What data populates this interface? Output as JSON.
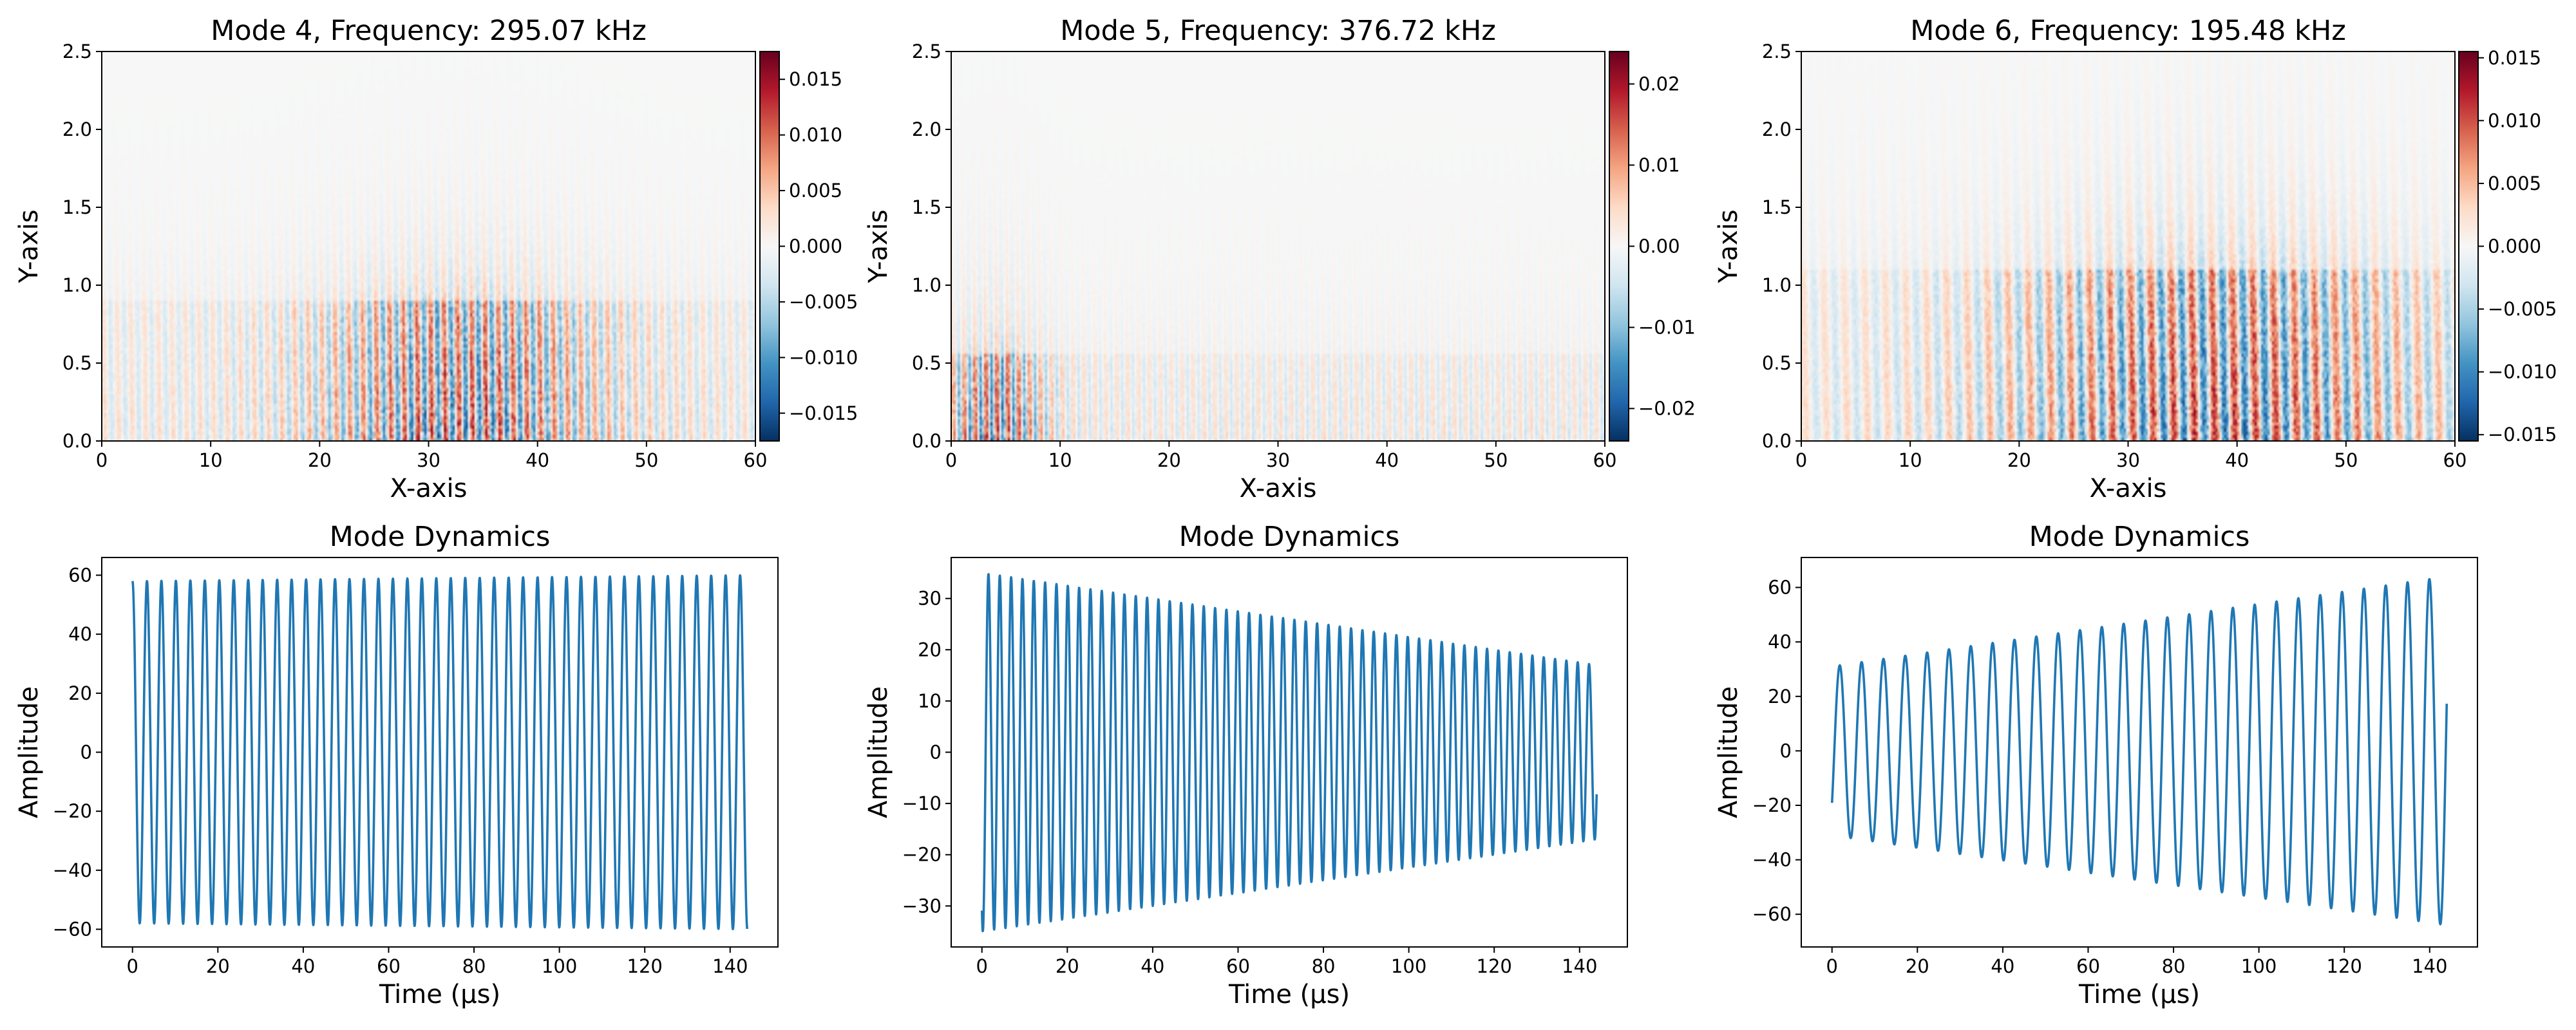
{
  "figure": {
    "background": "#ffffff"
  },
  "chart_data": [
    {
      "type": "heatmap",
      "title": "Mode 4, Frequency: 295.07 kHz",
      "xlabel": "X-axis",
      "ylabel": "Y-axis",
      "xlim": [
        0,
        60
      ],
      "ylim": [
        0,
        2.5
      ],
      "xticks": [
        0,
        10,
        20,
        30,
        40,
        50,
        60
      ],
      "xtick_labels": [
        "0",
        "10",
        "20",
        "30",
        "40",
        "50",
        "60"
      ],
      "yticks": [
        0.0,
        0.5,
        1.0,
        1.5,
        2.0,
        2.5
      ],
      "ytick_labels": [
        "0.0",
        "0.5",
        "1.0",
        "1.5",
        "2.0",
        "2.5"
      ],
      "colormap": "RdBu_r",
      "colorbar": {
        "vmin": -0.0175,
        "vmax": 0.0175,
        "ticks": [
          -0.015,
          -0.01,
          -0.005,
          0.0,
          0.005,
          0.01,
          0.015
        ],
        "tick_labels": [
          "−0.015",
          "−0.010",
          "−0.005",
          "0.000",
          "0.005",
          "0.010",
          "0.015"
        ]
      },
      "field": {
        "stripe_cycles": 48,
        "strong_x": [
          22,
          50
        ],
        "strong_center": 33,
        "band_top": 0.9,
        "fade_top": 1.7,
        "max_amp": 0.0175
      }
    },
    {
      "type": "heatmap",
      "title": "Mode 5, Frequency: 376.72 kHz",
      "xlabel": "X-axis",
      "ylabel": "Y-axis",
      "xlim": [
        0,
        60
      ],
      "ylim": [
        0,
        2.5
      ],
      "xticks": [
        0,
        10,
        20,
        30,
        40,
        50,
        60
      ],
      "xtick_labels": [
        "0",
        "10",
        "20",
        "30",
        "40",
        "50",
        "60"
      ],
      "yticks": [
        0.0,
        0.5,
        1.0,
        1.5,
        2.0,
        2.5
      ],
      "ytick_labels": [
        "0.0",
        "0.5",
        "1.0",
        "1.5",
        "2.0",
        "2.5"
      ],
      "colormap": "RdBu_r",
      "colorbar": {
        "vmin": -0.024,
        "vmax": 0.024,
        "ticks": [
          -0.02,
          -0.01,
          0.0,
          0.01,
          0.02
        ],
        "tick_labels": [
          "−0.02",
          "−0.01",
          "0.00",
          "0.01",
          "0.02"
        ]
      },
      "field": {
        "stripe_cycles": 60,
        "strong_x": [
          0,
          10
        ],
        "strong_center": 4,
        "band_top": 0.55,
        "fade_top": 1.5,
        "max_amp": 0.024
      }
    },
    {
      "type": "heatmap",
      "title": "Mode 6, Frequency: 195.48 kHz",
      "xlabel": "X-axis",
      "ylabel": "Y-axis",
      "xlim": [
        0,
        60
      ],
      "ylim": [
        0,
        2.5
      ],
      "xticks": [
        0,
        10,
        20,
        30,
        40,
        50,
        60
      ],
      "xtick_labels": [
        "0",
        "10",
        "20",
        "30",
        "40",
        "50",
        "60"
      ],
      "yticks": [
        0.0,
        0.5,
        1.0,
        1.5,
        2.0,
        2.5
      ],
      "ytick_labels": [
        "0.0",
        "0.5",
        "1.0",
        "1.5",
        "2.0",
        "2.5"
      ],
      "colormap": "RdBu_r",
      "colorbar": {
        "vmin": -0.0155,
        "vmax": 0.0155,
        "ticks": [
          -0.015,
          -0.01,
          -0.005,
          0.0,
          0.005,
          0.01,
          0.015
        ],
        "tick_labels": [
          "−0.015",
          "−0.010",
          "−0.005",
          "0.000",
          "0.005",
          "0.010",
          "0.015"
        ]
      },
      "field": {
        "stripe_cycles": 32,
        "strong_x": [
          18,
          58
        ],
        "strong_center": 38,
        "band_top": 1.1,
        "fade_top": 2.2,
        "max_amp": 0.0155
      }
    },
    {
      "type": "line",
      "title": "Mode Dynamics",
      "xlabel": "Time (μs)",
      "ylabel": "Amplitude",
      "xlim": [
        -7.2,
        151.2
      ],
      "ylim": [
        -66,
        66
      ],
      "xticks": [
        0,
        20,
        40,
        60,
        80,
        100,
        120,
        140
      ],
      "xtick_labels": [
        "0",
        "20",
        "40",
        "60",
        "80",
        "100",
        "120",
        "140"
      ],
      "yticks": [
        -60,
        -40,
        -20,
        0,
        20,
        40,
        60
      ],
      "ytick_labels": [
        "−60",
        "−40",
        "−20",
        "0",
        "20",
        "40",
        "60"
      ],
      "line_color": "#1f77b4",
      "signal": {
        "t_start": 0,
        "t_end": 144,
        "frequency_mhz": 0.29507,
        "amp_start": 58,
        "amp_end": 60,
        "phase_deg": 0,
        "samples": 2400
      }
    },
    {
      "type": "line",
      "title": "Mode Dynamics",
      "xlabel": "Time (μs)",
      "ylabel": "Amplitude",
      "xlim": [
        -7.2,
        151.2
      ],
      "ylim": [
        -38,
        38
      ],
      "xticks": [
        0,
        20,
        40,
        60,
        80,
        100,
        120,
        140
      ],
      "xtick_labels": [
        "0",
        "20",
        "40",
        "60",
        "80",
        "100",
        "120",
        "140"
      ],
      "yticks": [
        -30,
        -20,
        -10,
        0,
        10,
        20,
        30
      ],
      "ytick_labels": [
        "−30",
        "−20",
        "−10",
        "0",
        "10",
        "20",
        "30"
      ],
      "line_color": "#1f77b4",
      "signal": {
        "t_start": 0,
        "t_end": 144,
        "frequency_mhz": 0.37672,
        "amp_start": 35,
        "amp_end": 17,
        "phase_deg": 152,
        "samples": 2400
      }
    },
    {
      "type": "line",
      "title": "Mode Dynamics",
      "xlabel": "Time (μs)",
      "ylabel": "Amplitude",
      "xlim": [
        -7.2,
        151.2
      ],
      "ylim": [
        -72,
        71
      ],
      "xticks": [
        0,
        20,
        40,
        60,
        80,
        100,
        120,
        140
      ],
      "xtick_labels": [
        "0",
        "20",
        "40",
        "60",
        "80",
        "100",
        "120",
        "140"
      ],
      "yticks": [
        -60,
        -40,
        -20,
        0,
        20,
        40,
        60
      ],
      "ytick_labels": [
        "−60",
        "−40",
        "−20",
        "0",
        "20",
        "40",
        "60"
      ],
      "line_color": "#1f77b4",
      "signal": {
        "t_start": 0,
        "t_end": 144,
        "frequency_mhz": 0.19548,
        "amp_start": 31,
        "amp_end": 64,
        "phase_deg": 232,
        "samples": 2400
      }
    }
  ]
}
